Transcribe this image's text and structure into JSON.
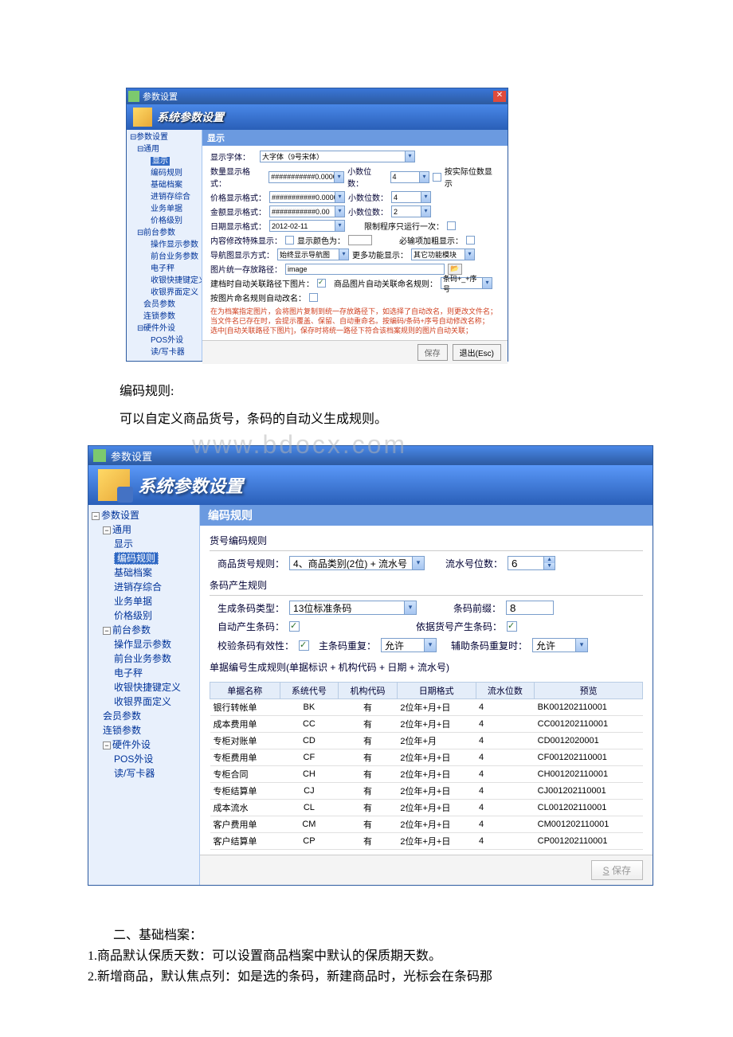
{
  "screenshot1": {
    "titlebar": {
      "title": "参数设置"
    },
    "header": "系统参数设置",
    "tree": [
      {
        "t": "参数设置",
        "lvl": 0,
        "tg": "-"
      },
      {
        "t": "通用",
        "lvl": 1,
        "tg": "-"
      },
      {
        "t": "显示",
        "lvl": 2,
        "sel": true
      },
      {
        "t": "编码规则",
        "lvl": 2
      },
      {
        "t": "基础档案",
        "lvl": 2
      },
      {
        "t": "进销存综合",
        "lvl": 2
      },
      {
        "t": "业务单据",
        "lvl": 2
      },
      {
        "t": "价格级别",
        "lvl": 2
      },
      {
        "t": "前台参数",
        "lvl": 1,
        "tg": "-"
      },
      {
        "t": "操作显示参数",
        "lvl": 2
      },
      {
        "t": "前台业务参数",
        "lvl": 2
      },
      {
        "t": "电子秤",
        "lvl": 2
      },
      {
        "t": "收银快捷键定义",
        "lvl": 2
      },
      {
        "t": "收银界面定义",
        "lvl": 2
      },
      {
        "t": "会员参数",
        "lvl": 1
      },
      {
        "t": "连锁参数",
        "lvl": 1
      },
      {
        "t": "硬件外设",
        "lvl": 1,
        "tg": "-"
      },
      {
        "t": "POS外设",
        "lvl": 2
      },
      {
        "t": "读/写卡器",
        "lvl": 2
      }
    ],
    "section_title": "显示",
    "form": {
      "font_label": "显示字体：",
      "font_value": "大字体（9号宋体）",
      "qty_label": "数量显示格式：",
      "qty_value": "###########0.0000",
      "price_label": "价格显示格式：",
      "price_value": "###########0.0000",
      "amount_label": "金额显示格式：",
      "amount_value": "###########0.00",
      "date_label": "日期显示格式：",
      "date_value": "2012-02-11",
      "dec_label": "小数位数：",
      "dec1": "4",
      "dec2": "4",
      "dec3": "2",
      "by_actual": "按实际位数显示",
      "limit_once": "限制程序只运行一次：",
      "modify_label": "内容修改特殊显示：",
      "modify_color": "显示颜色为：",
      "required": "必输项加粗显示：",
      "nav_label": "导航图显示方式：",
      "nav_value": "始终显示导航图",
      "more_label": "更多功能显示：",
      "more_value": "其它功能模块",
      "img_path_label": "图片统一存放路径：",
      "img_path": "image",
      "auto_link": "建档时自动关联路径下图片：",
      "prod_img_rule": "商品图片自动关联命名规则：",
      "prod_img_value": "条码+_+序号",
      "rename": "按图片命名规则自动改名：",
      "help": "在为档案指定图片，会将图片复制到统一存放路径下，如选择了自动改名，则更改文件名；\n当文件名已存在时，会提示覆盖、保留、自动重命名。按编码/条码+序号自动修改名称；\n选中[自动关联路径下图片]，保存时将统一路径下符合该档案规则的图片自动关联；"
    },
    "footer": {
      "save": "保存",
      "exit": "退出(Esc)"
    }
  },
  "doc1": {
    "line1": "编码规则:",
    "line2": "可以自定义商品货号，条码的自动义生成规则。"
  },
  "screenshot2": {
    "titlebar": {
      "title": "参数设置"
    },
    "header": "系统参数设置",
    "watermark": "www.bdocx.com",
    "tree": [
      {
        "t": "参数设置",
        "lvl": 0,
        "tg": "-"
      },
      {
        "t": "通用",
        "lvl": 1,
        "tg": "-"
      },
      {
        "t": "显示",
        "lvl": 2
      },
      {
        "t": "编码规则",
        "lvl": 2,
        "sel": true
      },
      {
        "t": "基础档案",
        "lvl": 2
      },
      {
        "t": "进销存综合",
        "lvl": 2
      },
      {
        "t": "业务单据",
        "lvl": 2
      },
      {
        "t": "价格级别",
        "lvl": 2
      },
      {
        "t": "前台参数",
        "lvl": 1,
        "tg": "-"
      },
      {
        "t": "操作显示参数",
        "lvl": 2
      },
      {
        "t": "前台业务参数",
        "lvl": 2
      },
      {
        "t": "电子秤",
        "lvl": 2
      },
      {
        "t": "收银快捷键定义",
        "lvl": 2
      },
      {
        "t": "收银界面定义",
        "lvl": 2
      },
      {
        "t": "会员参数",
        "lvl": 1
      },
      {
        "t": "连锁参数",
        "lvl": 1
      },
      {
        "t": "硬件外设",
        "lvl": 1,
        "tg": "-"
      },
      {
        "t": "POS外设",
        "lvl": 2
      },
      {
        "t": "读/写卡器",
        "lvl": 2
      }
    ],
    "section_title": "编码规则",
    "sub1": "货号编码规则",
    "prod_rule_label": "商品货号规则：",
    "prod_rule_value": "4、商品类别(2位) + 流水号",
    "serial_digits_label": "流水号位数：",
    "serial_digits": "6",
    "sub2": "条码产生规则",
    "barcode_type_label": "生成条码类型：",
    "barcode_type": "13位标准条码",
    "barcode_prefix_label": "条码前缀：",
    "barcode_prefix": "8",
    "auto_gen_label": "自动产生条码：",
    "by_code_label": "依据货号产生条码：",
    "check_valid_label": "校验条码有效性：",
    "main_dup_label": "主条码重复：",
    "main_dup": "允许",
    "aux_dup_label": "辅助条码重复时：",
    "aux_dup": "允许",
    "sub3": "单据编号生成规则(单据标识 + 机构代码 + 日期 + 流水号)",
    "table": {
      "headers": [
        "单据名称",
        "系统代号",
        "机构代码",
        "日期格式",
        "流水位数",
        "预览"
      ],
      "rows": [
        [
          "银行转帐单",
          "BK",
          "有",
          "2位年+月+日",
          "4",
          "BK001202110001"
        ],
        [
          "成本费用单",
          "CC",
          "有",
          "2位年+月+日",
          "4",
          "CC001202110001"
        ],
        [
          "专柜对账单",
          "CD",
          "有",
          "2位年+月",
          "4",
          "CD0012020001"
        ],
        [
          "专柜费用单",
          "CF",
          "有",
          "2位年+月+日",
          "4",
          "CF001202110001"
        ],
        [
          "专柜合同",
          "CH",
          "有",
          "2位年+月+日",
          "4",
          "CH001202110001"
        ],
        [
          "专柜结算单",
          "CJ",
          "有",
          "2位年+月+日",
          "4",
          "CJ001202110001"
        ],
        [
          "成本流水",
          "CL",
          "有",
          "2位年+月+日",
          "4",
          "CL001202110001"
        ],
        [
          "客户费用单",
          "CM",
          "有",
          "2位年+月+日",
          "4",
          "CM001202110001"
        ],
        [
          "客户结算单",
          "CP",
          "有",
          "2位年+月+日",
          "4",
          "CP001202110001"
        ]
      ]
    },
    "footer": {
      "save_ul": "S",
      "save": " 保存"
    }
  },
  "doc2": {
    "line1": "二、基础档案：",
    "line2": "1.商品默认保质天数：可以设置商品档案中默认的保质期天数。",
    "line3": "2.新增商品，默认焦点列：如是选的条码，新建商品时，光标会在条码那"
  }
}
